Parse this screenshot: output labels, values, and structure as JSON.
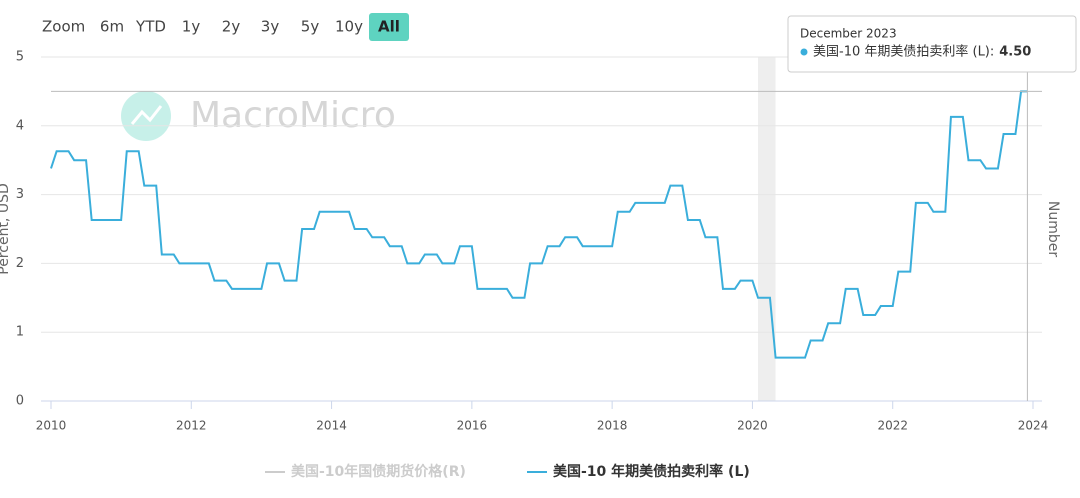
{
  "zoom": {
    "label": "Zoom",
    "options": [
      "6m",
      "YTD",
      "1y",
      "2y",
      "3y",
      "5y",
      "10y",
      "All"
    ],
    "active": "All"
  },
  "watermark": "MacroMicro",
  "tooltip": {
    "date": "December 2023",
    "series": "美国-10 年期美债拍卖利率 (L):",
    "value": "4.50"
  },
  "chart_data": {
    "type": "line",
    "y_label": "Percent, USD",
    "y2_label": "Number",
    "xlim": [
      2010,
      2024
    ],
    "xticks": [
      2010,
      2012,
      2014,
      2016,
      2018,
      2020,
      2022,
      2024
    ],
    "ylim": [
      0,
      5
    ],
    "yticks": [
      0,
      1,
      2,
      3,
      4,
      5
    ],
    "grid": true,
    "shaded_x": [
      2020.08,
      2020.33
    ],
    "hidden_series": [
      {
        "name": "美国-10年国债期货价格(R)",
        "color": "#cccccc"
      }
    ],
    "x": [
      2010,
      2010.08,
      2010.25,
      2010.33,
      2010.5,
      2010.58,
      2011,
      2011.08,
      2011.25,
      2011.33,
      2011.5,
      2011.58,
      2011.75,
      2011.83,
      2012.25,
      2012.33,
      2012.5,
      2012.58,
      2013,
      2013.08,
      2013.25,
      2013.33,
      2013.5,
      2013.58,
      2013.75,
      2013.83,
      2014.25,
      2014.33,
      2014.5,
      2014.58,
      2014.75,
      2014.83,
      2015,
      2015.08,
      2015.25,
      2015.33,
      2015.5,
      2015.58,
      2015.75,
      2015.83,
      2016,
      2016.08,
      2016.5,
      2016.58,
      2016.75,
      2016.83,
      2017,
      2017.08,
      2017.25,
      2017.33,
      2017.5,
      2017.58,
      2018,
      2018.08,
      2018.25,
      2018.33,
      2018.75,
      2018.83,
      2019,
      2019.08,
      2019.25,
      2019.33,
      2019.5,
      2019.58,
      2019.75,
      2019.83,
      2020,
      2020.08,
      2020.25,
      2020.33,
      2020.75,
      2020.83,
      2021,
      2021.08,
      2021.25,
      2021.33,
      2021.5,
      2021.58,
      2021.75,
      2021.83,
      2022,
      2022.08,
      2022.25,
      2022.33,
      2022.5,
      2022.58,
      2022.75,
      2022.83,
      2023,
      2023.08,
      2023.25,
      2023.33,
      2023.5,
      2023.58,
      2023.75,
      2023.83,
      2023.92
    ],
    "series": [
      {
        "name": "美国-10 年期美债拍卖利率 (L)",
        "color": "#3aaedb",
        "values": [
          3.38,
          3.63,
          3.63,
          3.5,
          3.5,
          2.63,
          2.63,
          3.63,
          3.63,
          3.13,
          3.13,
          2.13,
          2.13,
          2.0,
          2.0,
          1.75,
          1.75,
          1.63,
          1.63,
          2.0,
          2.0,
          1.75,
          1.75,
          2.5,
          2.5,
          2.75,
          2.75,
          2.5,
          2.5,
          2.38,
          2.38,
          2.25,
          2.25,
          2.0,
          2.0,
          2.13,
          2.13,
          2.0,
          2.0,
          2.25,
          2.25,
          1.63,
          1.63,
          1.5,
          1.5,
          2.0,
          2.0,
          2.25,
          2.25,
          2.38,
          2.38,
          2.25,
          2.25,
          2.75,
          2.75,
          2.88,
          2.88,
          3.13,
          3.13,
          2.63,
          2.63,
          2.38,
          2.38,
          1.63,
          1.63,
          1.75,
          1.75,
          1.5,
          1.5,
          0.63,
          0.63,
          0.88,
          0.88,
          1.13,
          1.13,
          1.63,
          1.63,
          1.25,
          1.25,
          1.38,
          1.38,
          1.88,
          1.88,
          2.88,
          2.88,
          2.75,
          2.75,
          4.13,
          4.13,
          3.5,
          3.5,
          3.38,
          3.38,
          3.88,
          3.88,
          4.5,
          4.5
        ]
      }
    ]
  }
}
